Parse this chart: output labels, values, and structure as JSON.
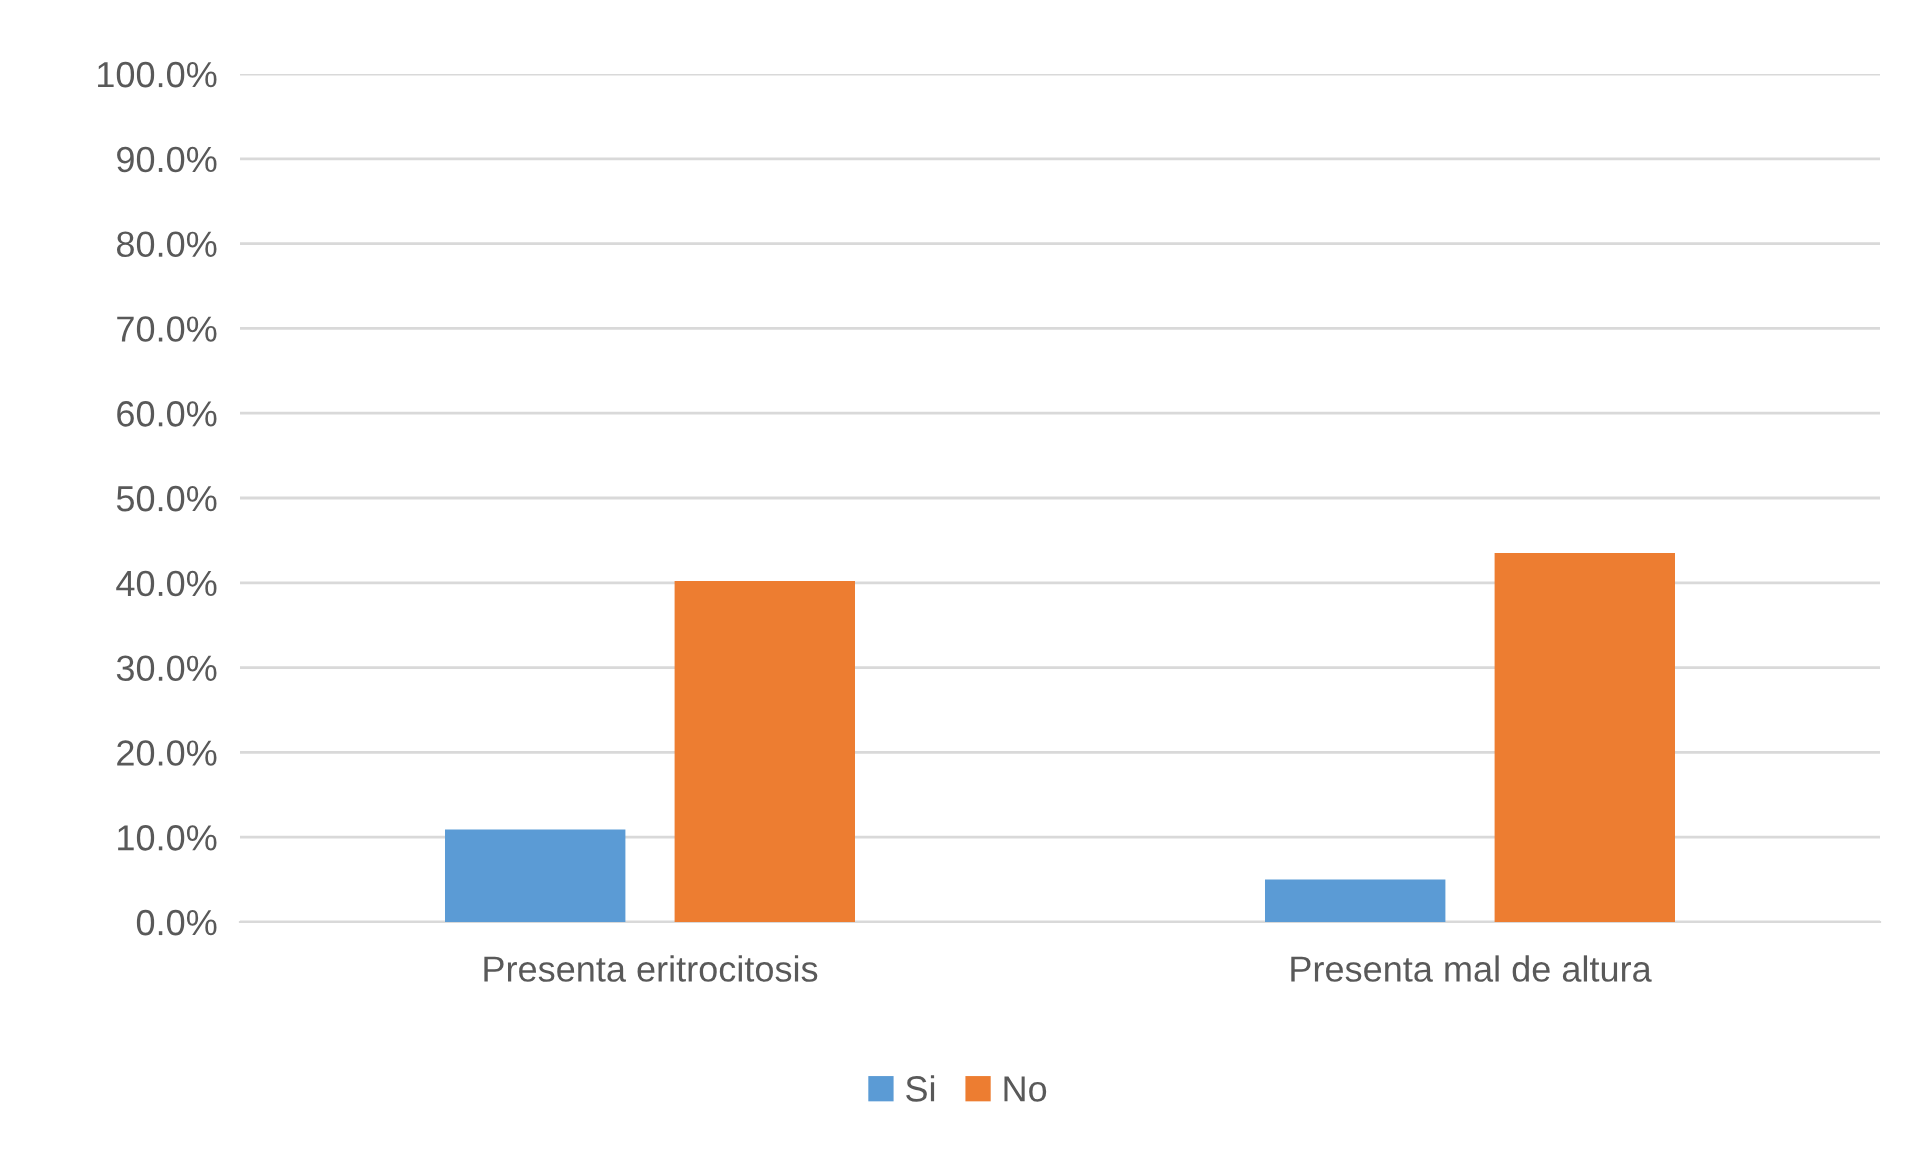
{
  "chart_data": {
    "type": "bar",
    "categories": [
      "Presenta eritrocitosis",
      "Presenta mal de altura"
    ],
    "series": [
      {
        "name": "Si",
        "color": "#5b9bd5",
        "values": [
          10.9,
          5.0
        ]
      },
      {
        "name": "No",
        "color": "#ed7d31",
        "values": [
          40.2,
          43.5
        ]
      }
    ],
    "ylim": [
      0,
      100
    ],
    "yticks": [
      {
        "value": 0,
        "label": "0.0%"
      },
      {
        "value": 10,
        "label": "10.0%"
      },
      {
        "value": 20,
        "label": "20.0%"
      },
      {
        "value": 30,
        "label": "30.0%"
      },
      {
        "value": 40,
        "label": "40.0%"
      },
      {
        "value": 50,
        "label": "50.0%"
      },
      {
        "value": 60,
        "label": "60.0%"
      },
      {
        "value": 70,
        "label": "70.0%"
      },
      {
        "value": 80,
        "label": "80.0%"
      },
      {
        "value": 90,
        "label": "90.0%"
      },
      {
        "value": 100,
        "label": "100.0%"
      }
    ],
    "grid": "y",
    "legend": "bottom"
  }
}
